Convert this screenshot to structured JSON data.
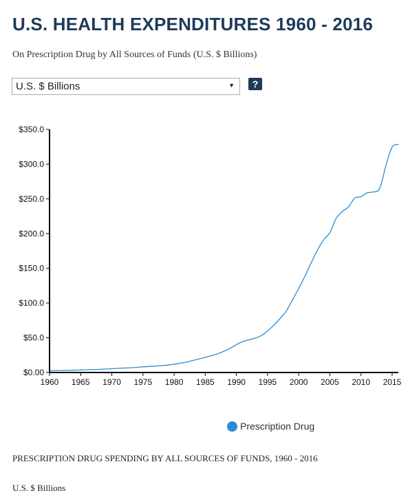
{
  "header": {
    "title": "U.S. HEALTH EXPENDITURES 1960 - 2016",
    "subtitle": "On Prescription Drug by All Sources of Funds (U.S. $ Billions)"
  },
  "controls": {
    "unit_select_value": "U.S. $ Billions",
    "dropdown_arrow": "▼",
    "help_label": "?"
  },
  "legend": {
    "label": "Prescription Drug",
    "color": "#2a8bd1"
  },
  "footer": {
    "caption": "PRESCRIPTION DRUG SPENDING BY ALL SOURCES OF FUNDS, 1960 - 2016",
    "units": "U.S. $ Billions"
  },
  "chart_data": {
    "type": "line",
    "title": "",
    "xlabel": "",
    "ylabel": "",
    "xlim": [
      1960,
      2016
    ],
    "ylim": [
      0,
      350
    ],
    "y_ticks": [
      0,
      50,
      100,
      150,
      200,
      250,
      300,
      350
    ],
    "y_tick_labels": [
      "$0.00",
      "$50.0",
      "$100.0",
      "$150.0",
      "$200.0",
      "$250.0",
      "$300.0",
      "$350.0"
    ],
    "x_ticks": [
      1960,
      1965,
      1970,
      1975,
      1980,
      1985,
      1990,
      1995,
      2000,
      2005,
      2010,
      2015
    ],
    "x_tick_labels": [
      "1960",
      "1965",
      "1970",
      "1975",
      "1980",
      "1985",
      "1990",
      "1995",
      "2000",
      "2005",
      "2010",
      "2015"
    ],
    "grid": false,
    "series": [
      {
        "name": "Prescription Drug",
        "color": "#2a8bd1",
        "x": [
          1960,
          1961,
          1962,
          1963,
          1964,
          1965,
          1966,
          1967,
          1968,
          1969,
          1970,
          1971,
          1972,
          1973,
          1974,
          1975,
          1976,
          1977,
          1978,
          1979,
          1980,
          1981,
          1982,
          1983,
          1984,
          1985,
          1986,
          1987,
          1988,
          1989,
          1990,
          1991,
          1992,
          1993,
          1994,
          1995,
          1996,
          1997,
          1998,
          1999,
          2000,
          2001,
          2002,
          2003,
          2004,
          2005,
          2006,
          2007,
          2008,
          2009,
          2010,
          2011,
          2012,
          2013,
          2014,
          2015,
          2016
        ],
        "values": [
          2.7,
          2.8,
          3.0,
          3.2,
          3.3,
          3.7,
          4.0,
          4.2,
          4.6,
          5.0,
          5.5,
          5.9,
          6.4,
          6.8,
          7.4,
          8.1,
          8.7,
          9.2,
          9.9,
          10.7,
          12.0,
          13.4,
          15.0,
          17.3,
          19.6,
          21.8,
          24.3,
          26.9,
          30.6,
          34.8,
          40.3,
          44.4,
          47.0,
          49.6,
          53.0,
          59.8,
          68.1,
          77.6,
          88.4,
          104.7,
          121.0,
          138.7,
          157.9,
          176.0,
          191.0,
          201.1,
          221.7,
          231.6,
          238.6,
          251.2,
          253.1,
          258.8,
          260.0,
          265.0,
          298.0,
          324.6,
          328.6
        ]
      }
    ]
  }
}
